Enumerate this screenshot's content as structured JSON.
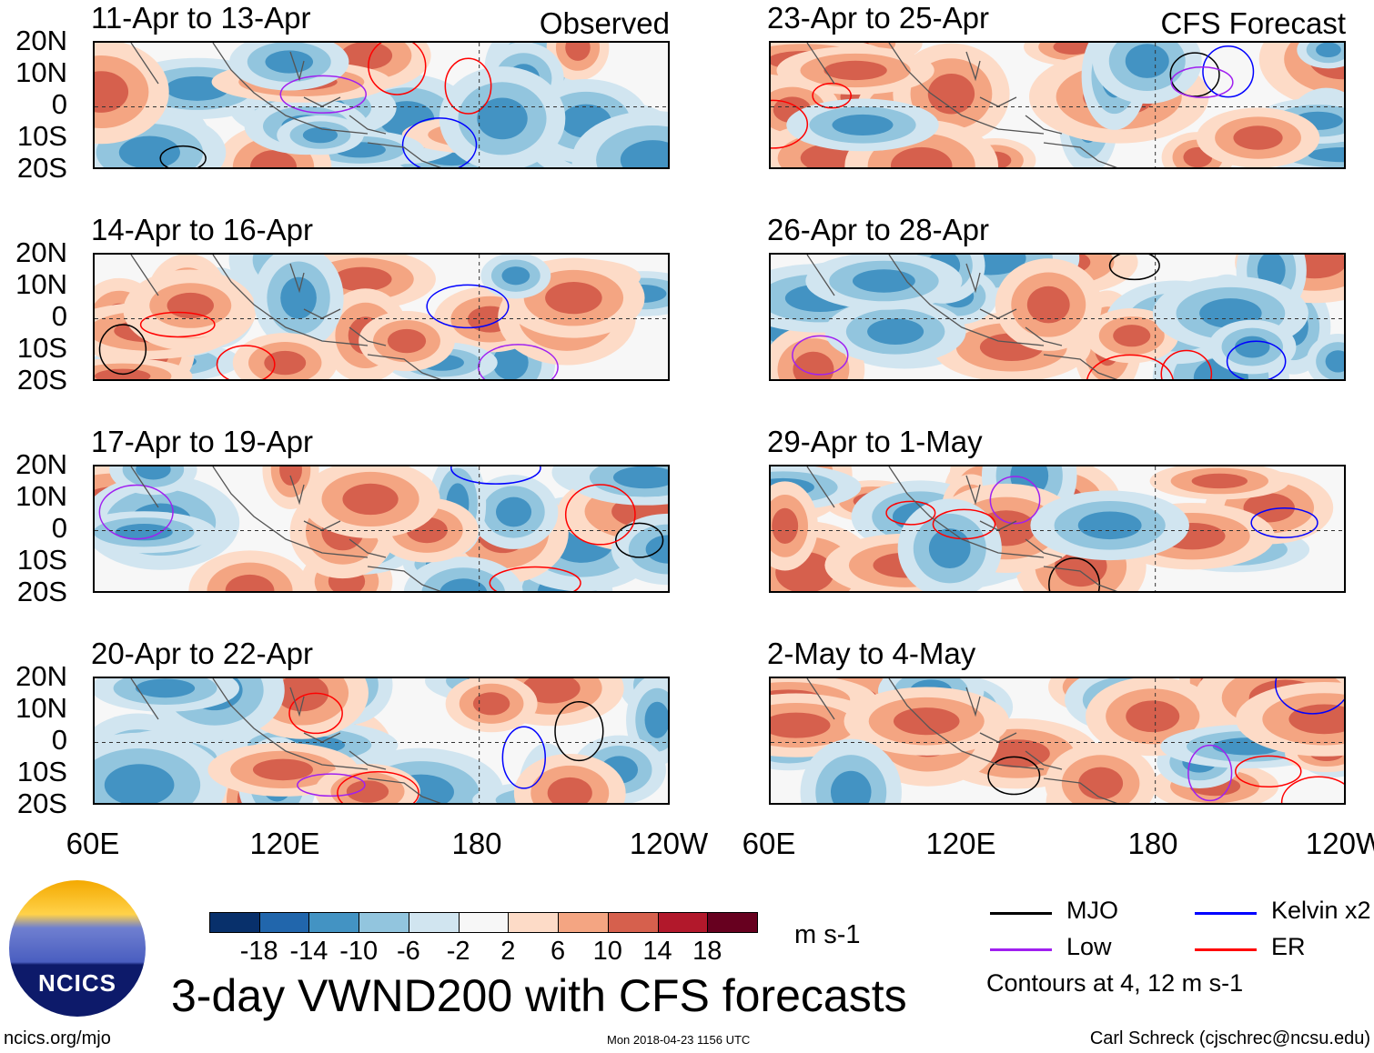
{
  "chart_data": {
    "type": "heatmap",
    "title": "3-day VWND200 with CFS forecasts",
    "variable": "VWND200",
    "units": "m s-1",
    "lat_ticks": [
      "20N",
      "10N",
      "0",
      "10S",
      "20S"
    ],
    "lon_ticks": [
      "60E",
      "120E",
      "180",
      "120W"
    ],
    "lat_range": [
      -20,
      20
    ],
    "lon_range": [
      60,
      240
    ],
    "colorbar": {
      "labels": [
        "-18",
        "-14",
        "-10",
        "-6",
        "-2",
        "2",
        "6",
        "10",
        "14",
        "18"
      ],
      "colors": [
        "#08306b",
        "#2166ac",
        "#4393c3",
        "#92c5de",
        "#d1e5f0",
        "#f7f7f7",
        "#fddbc7",
        "#f4a582",
        "#d6604d",
        "#b2182b",
        "#67001f"
      ],
      "units": "m s-1"
    },
    "legend": [
      {
        "name": "MJO",
        "color": "#000000"
      },
      {
        "name": "Kelvin x2",
        "color": "#0000ff"
      },
      {
        "name": "Low",
        "color": "#a020f0"
      },
      {
        "name": "ER",
        "color": "#ff0000"
      }
    ],
    "contour_note": "Contours at 4, 12 m s-1",
    "panels": [
      {
        "title": "11-Apr to 13-Apr",
        "corner": "Observed"
      },
      {
        "title": "14-Apr to 16-Apr",
        "corner": ""
      },
      {
        "title": "17-Apr to 19-Apr",
        "corner": ""
      },
      {
        "title": "20-Apr to 22-Apr",
        "corner": ""
      },
      {
        "title": "23-Apr to 25-Apr",
        "corner": "CFS Forecast"
      },
      {
        "title": "26-Apr to 28-Apr",
        "corner": ""
      },
      {
        "title": "29-Apr to 1-May",
        "corner": ""
      },
      {
        "title": "2-May to 4-May",
        "corner": ""
      }
    ]
  },
  "footer": {
    "logo_text": "NCICS",
    "url": "ncics.org/mjo",
    "timestamp": "Mon 2018-04-23 1156 UTC",
    "author": "Carl Schreck (cjschrec@ncsu.edu)"
  }
}
